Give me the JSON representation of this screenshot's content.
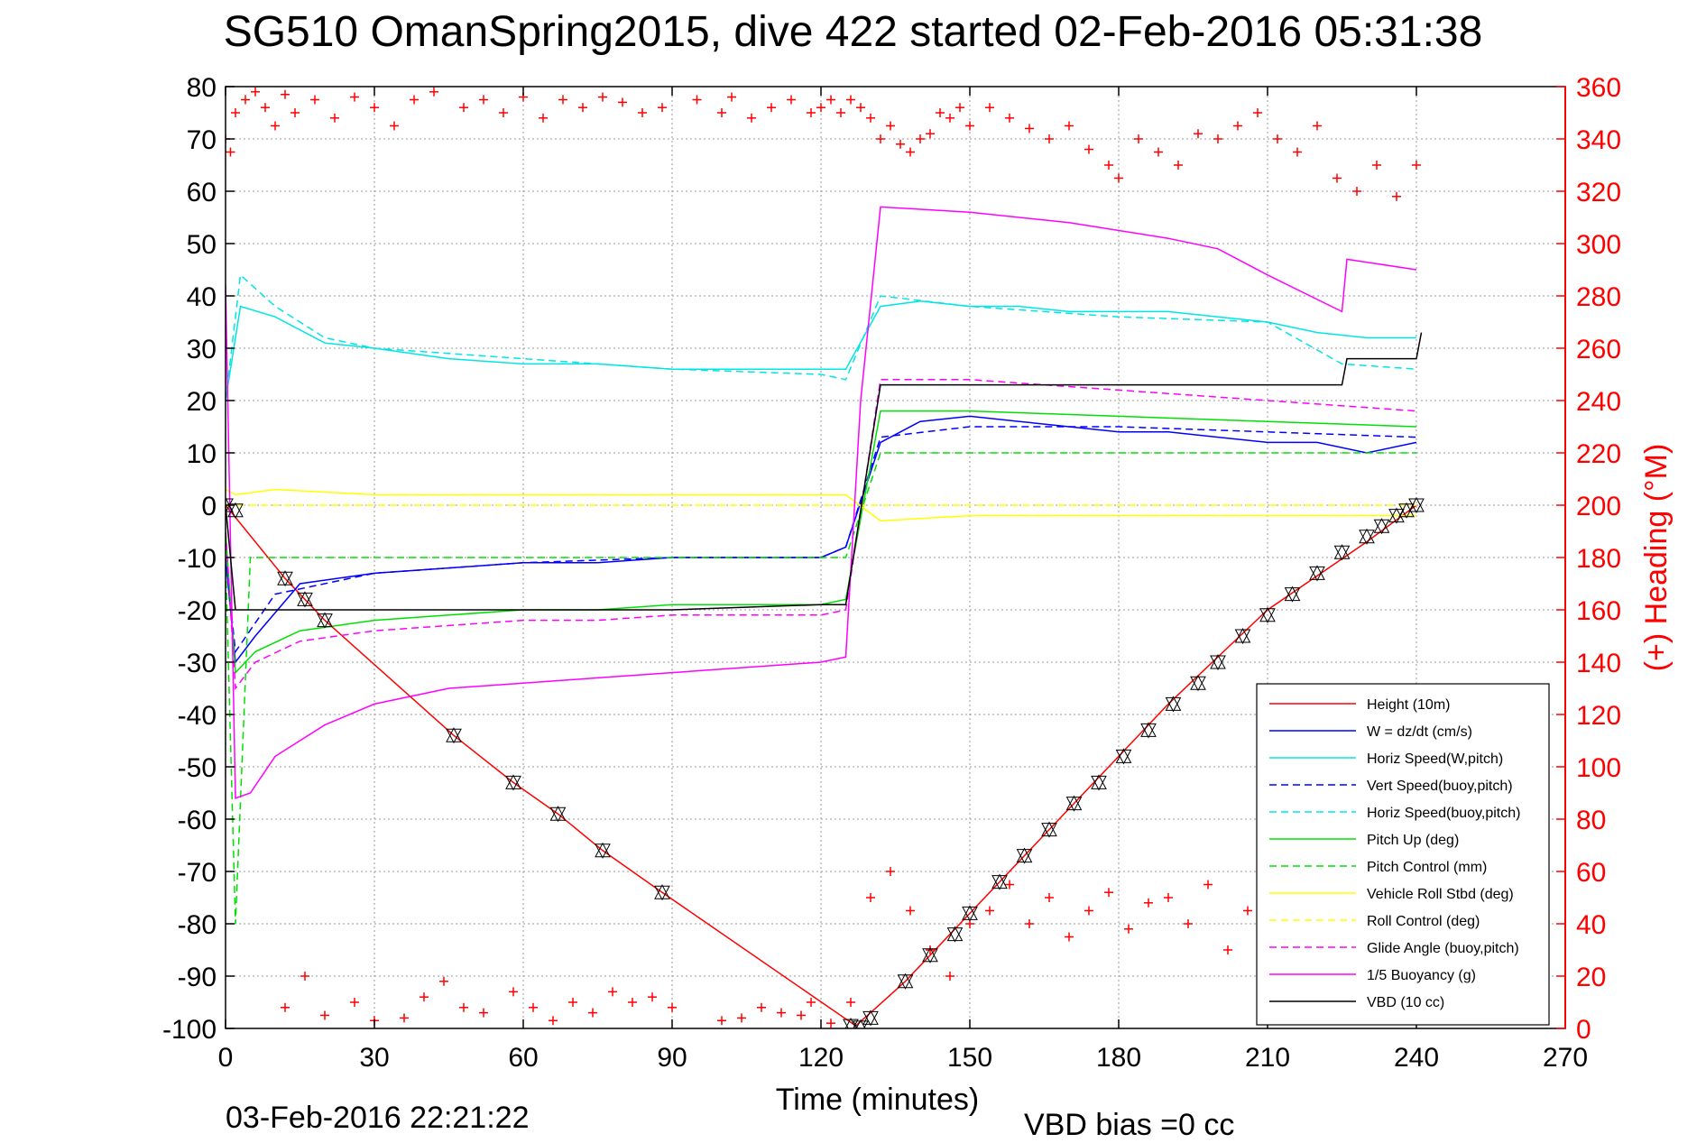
{
  "title": "SG510 OmanSpring2015, dive 422 started 02-Feb-2016 05:31:38",
  "footer": {
    "timestamp": "03-Feb-2016 22:21:22",
    "vbd_bias": "VBD bias =0 cc"
  },
  "colors": {
    "height": "#ff0000",
    "w": "#0000ff",
    "horiz_speed": "#00e5e5",
    "pitch": "#00e000",
    "roll": "#ffff00",
    "glide": "#ff00ff",
    "vbd": "#000000",
    "heading": "#ff0000"
  },
  "chart_data": {
    "type": "line",
    "title": "SG510 OmanSpring2015, dive 422 started 02-Feb-2016 05:31:38",
    "xlabel": "Time (minutes)",
    "ylabel": "",
    "y2label": "(+) Heading (°M)",
    "xlim": [
      0,
      270
    ],
    "ylim": [
      -100,
      80
    ],
    "y2lim": [
      0,
      360
    ],
    "xticks": [
      0,
      30,
      60,
      90,
      120,
      150,
      180,
      210,
      240,
      270
    ],
    "yticks": [
      80,
      70,
      60,
      50,
      40,
      30,
      20,
      10,
      0,
      -10,
      -20,
      -30,
      -40,
      -50,
      -60,
      -70,
      -80,
      -90,
      -100
    ],
    "y2ticks": [
      360,
      340,
      320,
      300,
      280,
      260,
      240,
      220,
      200,
      180,
      160,
      140,
      120,
      100,
      80,
      60,
      40,
      20,
      0
    ],
    "grid": true,
    "legend_position": "bottom-right",
    "series": [
      {
        "name": "Height (10m)",
        "style": "solid",
        "color": "#ff0000",
        "x": [
          0,
          12,
          20,
          46,
          58,
          67,
          76,
          88,
          127,
          130,
          137,
          150,
          170,
          190,
          210,
          230,
          240
        ],
        "y": [
          0,
          -14,
          -22,
          -44,
          -53,
          -59,
          -66,
          -74,
          -99.5,
          -97,
          -91,
          -78,
          -58,
          -38,
          -20,
          -7,
          0
        ]
      },
      {
        "name": "W = dz/dt (cm/s)",
        "style": "solid",
        "color": "#0000ff",
        "x": [
          0,
          2,
          6,
          15,
          30,
          45,
          60,
          75,
          90,
          105,
          120,
          125,
          132,
          140,
          150,
          160,
          170,
          180,
          190,
          200,
          210,
          220,
          230,
          240
        ],
        "y": [
          -10,
          -30,
          -25,
          -15,
          -13,
          -12,
          -11,
          -11,
          -10,
          -10,
          -10,
          -8,
          12,
          16,
          17,
          16,
          15,
          14,
          14,
          13,
          12,
          12,
          10,
          12
        ]
      },
      {
        "name": "Horiz Speed(W,pitch)",
        "style": "solid",
        "color": "#00e5e5",
        "x": [
          0,
          3,
          10,
          20,
          30,
          45,
          60,
          75,
          90,
          105,
          120,
          125,
          132,
          140,
          150,
          160,
          170,
          180,
          190,
          200,
          210,
          220,
          230,
          240
        ],
        "y": [
          20,
          38,
          36,
          31,
          30,
          28,
          27,
          27,
          26,
          26,
          26,
          26,
          38,
          39,
          38,
          38,
          37,
          37,
          37,
          36,
          35,
          33,
          32,
          32
        ]
      },
      {
        "name": "Vert Speed(buoy,pitch)",
        "style": "dashed",
        "color": "#0000ff",
        "x": [
          0,
          2,
          10,
          30,
          60,
          90,
          120,
          125,
          132,
          150,
          180,
          210,
          240
        ],
        "y": [
          -10,
          -28,
          -17,
          -13,
          -11,
          -10,
          -10,
          -8,
          13,
          15,
          15,
          14,
          13
        ]
      },
      {
        "name": "Horiz Speed(buoy,pitch)",
        "style": "dashed",
        "color": "#00e5e5",
        "x": [
          0,
          3,
          10,
          20,
          30,
          60,
          90,
          120,
          125,
          132,
          150,
          180,
          210,
          225,
          240
        ],
        "y": [
          20,
          44,
          38,
          32,
          30,
          28,
          26,
          25,
          24,
          40,
          38,
          36,
          35,
          27,
          26
        ]
      },
      {
        "name": "Pitch Up (deg)",
        "style": "solid",
        "color": "#00e000",
        "x": [
          0,
          2,
          6,
          15,
          30,
          45,
          60,
          75,
          90,
          105,
          120,
          125,
          132,
          150,
          180,
          210,
          240
        ],
        "y": [
          -5,
          -32,
          -28,
          -24,
          -22,
          -21,
          -20,
          -20,
          -19,
          -19,
          -19,
          -18,
          18,
          18,
          17,
          16,
          15
        ]
      },
      {
        "name": "Pitch Control (mm)",
        "style": "dashed",
        "color": "#00e000",
        "x": [
          0,
          2,
          5,
          30,
          60,
          90,
          120,
          125,
          132,
          150,
          180,
          210,
          240
        ],
        "y": [
          -10,
          -80,
          -10,
          -10,
          -10,
          -10,
          -10,
          -10,
          10,
          10,
          10,
          10,
          10
        ]
      },
      {
        "name": "Vehicle Roll Stbd (deg)",
        "style": "solid",
        "color": "#ffff00",
        "x": [
          0,
          2,
          10,
          30,
          60,
          90,
          120,
          125,
          132,
          150,
          180,
          210,
          240
        ],
        "y": [
          3,
          2,
          3,
          2,
          2,
          2,
          2,
          2,
          -3,
          -2,
          -2,
          -2,
          -2
        ]
      },
      {
        "name": "Roll Control (deg)",
        "style": "dashed",
        "color": "#ffff00",
        "x": [
          0,
          2,
          10,
          30,
          60,
          90,
          120,
          125,
          132,
          150,
          180,
          210,
          240
        ],
        "y": [
          0,
          0,
          0,
          0,
          0,
          0,
          0,
          0,
          0,
          0,
          0,
          0,
          0
        ]
      },
      {
        "name": "Glide Angle (buoy,pitch)",
        "style": "dashed",
        "color": "#ff00ff",
        "x": [
          0,
          2,
          6,
          15,
          30,
          45,
          60,
          75,
          90,
          105,
          120,
          125,
          132,
          150,
          180,
          210,
          240
        ],
        "y": [
          -5,
          -35,
          -30,
          -26,
          -24,
          -23,
          -22,
          -22,
          -21,
          -21,
          -21,
          -20,
          24,
          24,
          22,
          20,
          18
        ]
      },
      {
        "name": "1/5 Buoyancy (g)",
        "style": "solid",
        "color": "#ff00ff",
        "x": [
          0,
          2,
          5,
          10,
          20,
          30,
          45,
          60,
          75,
          90,
          105,
          120,
          125,
          128,
          132,
          150,
          170,
          190,
          200,
          210,
          225,
          226,
          240
        ],
        "y": [
          42,
          -56,
          -55,
          -48,
          -42,
          -38,
          -35,
          -34,
          -33,
          -32,
          -31,
          -30,
          -29,
          20,
          57,
          56,
          54,
          51,
          49,
          44,
          37,
          47,
          45
        ]
      },
      {
        "name": "VBD (10 cc)",
        "style": "solid",
        "color": "#000000",
        "x": [
          0,
          2,
          5,
          30,
          60,
          90,
          120,
          125,
          132,
          150,
          180,
          210,
          225,
          226,
          240,
          241
        ],
        "y": [
          0,
          -20,
          -20,
          -20,
          -20,
          -20,
          -19,
          -19,
          23,
          23,
          23,
          23,
          23,
          28,
          28,
          33
        ]
      }
    ],
    "heading_series": {
      "name": "(+) Heading (°M)",
      "marker": "+",
      "color": "#ff0000",
      "x": [
        0,
        1,
        2,
        4,
        6,
        8,
        10,
        12,
        14,
        18,
        22,
        26,
        30,
        34,
        38,
        42,
        48,
        52,
        56,
        60,
        64,
        68,
        72,
        76,
        80,
        84,
        88,
        95,
        100,
        102,
        106,
        110,
        114,
        118,
        120,
        122,
        124,
        126,
        128,
        130,
        132,
        134,
        136,
        138,
        140,
        142,
        144,
        146,
        148,
        150,
        154,
        158,
        162,
        166,
        170,
        174,
        178,
        180,
        184,
        188,
        192,
        196,
        200,
        204,
        208,
        212,
        216,
        220,
        224,
        228,
        232,
        236,
        240,
        12,
        16,
        20,
        26,
        30,
        36,
        40,
        44,
        48,
        52,
        58,
        62,
        66,
        70,
        74,
        78,
        82,
        86,
        90,
        100,
        104,
        108,
        112,
        116,
        118,
        122,
        126,
        130,
        134,
        138,
        142,
        146,
        150,
        154,
        158,
        162,
        166,
        170,
        174,
        178,
        182,
        186,
        190,
        194,
        198,
        202,
        206,
        210,
        214,
        218,
        222,
        226,
        230,
        234,
        238,
        241
      ],
      "y": [
        340,
        335,
        350,
        355,
        358,
        352,
        345,
        357,
        350,
        355,
        348,
        356,
        352,
        345,
        355,
        358,
        352,
        355,
        350,
        356,
        348,
        355,
        352,
        356,
        354,
        350,
        352,
        355,
        350,
        356,
        348,
        352,
        355,
        350,
        352,
        355,
        350,
        355,
        352,
        348,
        340,
        345,
        338,
        335,
        340,
        342,
        350,
        348,
        352,
        345,
        352,
        348,
        344,
        340,
        345,
        336,
        330,
        325,
        340,
        335,
        330,
        342,
        340,
        345,
        350,
        340,
        335,
        345,
        325,
        320,
        330,
        318,
        330,
        8,
        20,
        5,
        10,
        3,
        4,
        12,
        18,
        8,
        6,
        14,
        8,
        3,
        10,
        6,
        14,
        10,
        12,
        8,
        3,
        4,
        8,
        6,
        5,
        10,
        2,
        10,
        50,
        60,
        45,
        30,
        20,
        40,
        45,
        55,
        40,
        50,
        35,
        45,
        52,
        38,
        48,
        50,
        40,
        55,
        30,
        45,
        35,
        52,
        40,
        48,
        35,
        50,
        40,
        45,
        52
      ]
    },
    "depth_markers": {
      "marker": "triangles",
      "x": [
        0,
        2,
        12,
        16,
        20,
        46,
        58,
        67,
        76,
        88,
        126,
        128,
        130,
        137,
        142,
        147,
        150,
        156,
        161,
        166,
        171,
        176,
        181,
        186,
        191,
        196,
        200,
        205,
        210,
        215,
        220,
        225,
        230,
        233,
        236,
        238,
        240
      ],
      "y": [
        0,
        -1,
        -14,
        -18,
        -22,
        -44,
        -53,
        -59,
        -66,
        -74,
        -99.5,
        -99.8,
        -98,
        -91,
        -86,
        -82,
        -78,
        -72,
        -67,
        -62,
        -57,
        -53,
        -48,
        -43,
        -38,
        -34,
        -30,
        -25,
        -21,
        -17,
        -13,
        -9,
        -6,
        -4,
        -2,
        -1,
        0
      ]
    }
  }
}
